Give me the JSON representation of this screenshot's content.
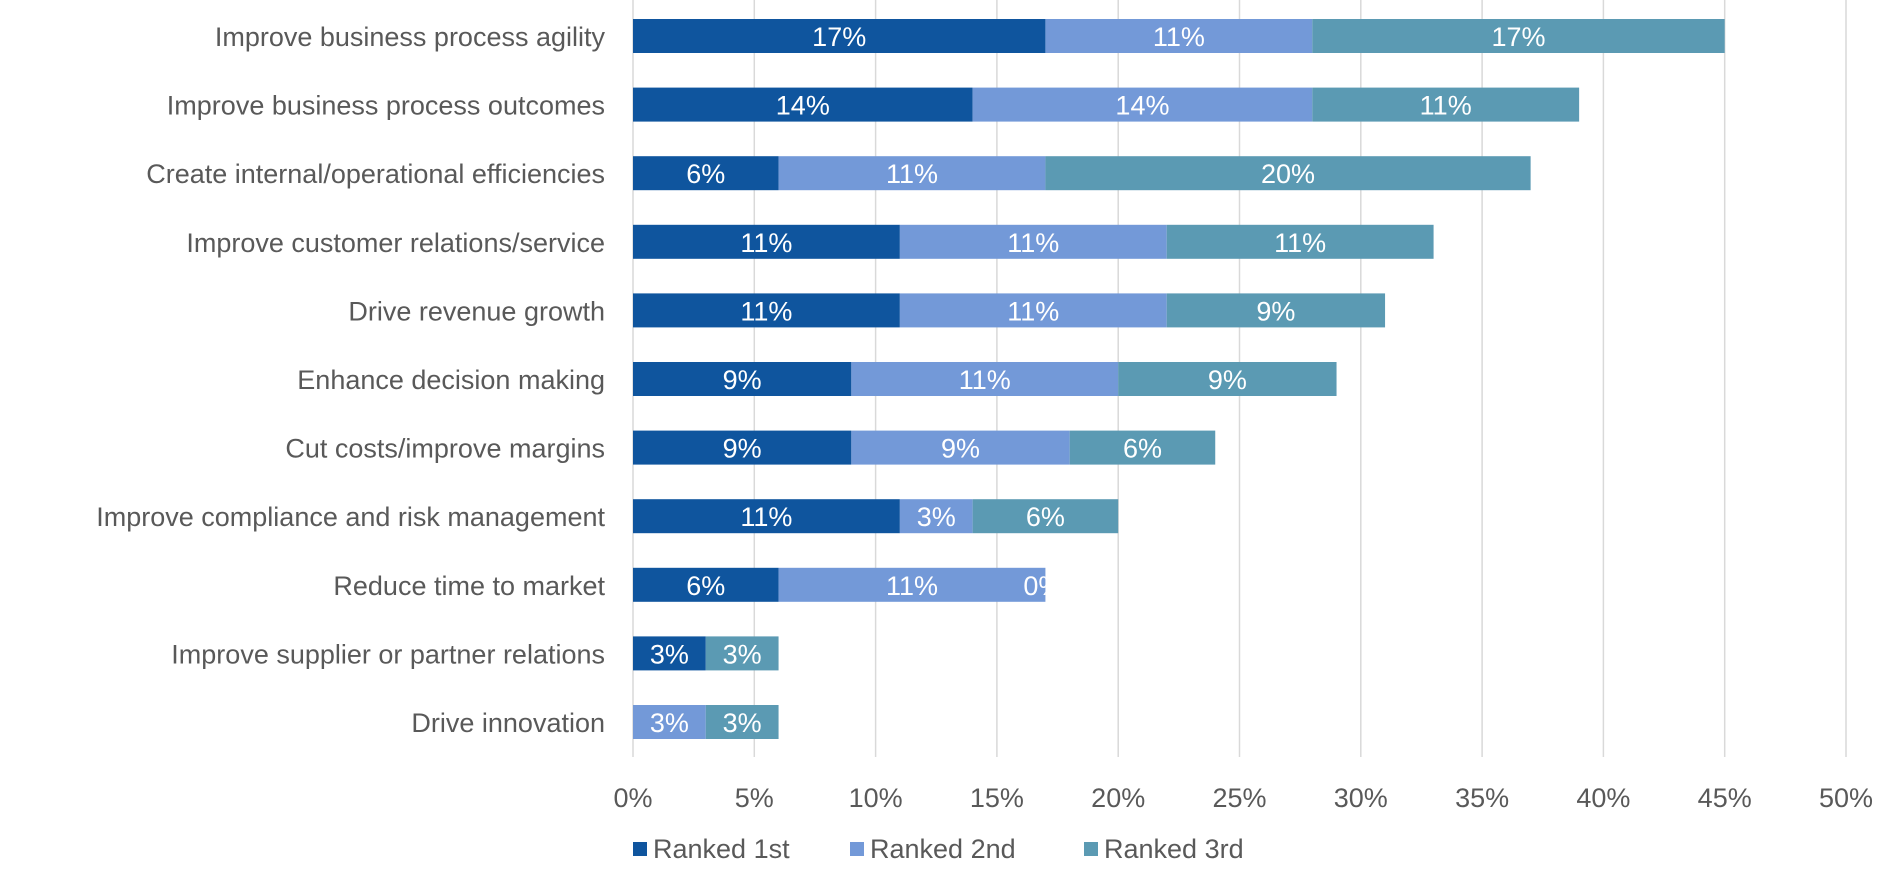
{
  "chart_data": {
    "type": "bar",
    "orientation": "horizontal",
    "stacked": true,
    "categories": [
      "Improve business process agility",
      "Improve business process outcomes",
      "Create internal/operational efficiencies",
      "Improve customer relations/service",
      "Drive revenue growth",
      "Enhance decision making",
      "Cut costs/improve margins",
      "Improve compliance and risk management",
      "Reduce time to market",
      "Improve supplier or partner relations",
      "Drive innovation"
    ],
    "series": [
      {
        "name": "Ranked 1st",
        "color": "#0F559E",
        "values": [
          17,
          14,
          6,
          11,
          11,
          9,
          9,
          11,
          6,
          3,
          0
        ],
        "labels": [
          "17%",
          "14%",
          "6%",
          "11%",
          "11%",
          "9%",
          "9%",
          "11%",
          "6%",
          "3%",
          ""
        ]
      },
      {
        "name": "Ranked 2nd",
        "color": "#7399D8",
        "values": [
          11,
          14,
          11,
          11,
          11,
          11,
          9,
          3,
          11,
          0,
          3
        ],
        "labels": [
          "11%",
          "14%",
          "11%",
          "11%",
          "11%",
          "11%",
          "9%",
          "3%",
          "11%",
          "",
          "3%"
        ]
      },
      {
        "name": "Ranked 3rd",
        "color": "#5B9AB3",
        "values": [
          17,
          11,
          20,
          11,
          9,
          9,
          6,
          6,
          0,
          3,
          3
        ],
        "labels": [
          "17%",
          "11%",
          "20%",
          "11%",
          "9%",
          "9%",
          "6%",
          "6%",
          "0%",
          "3%",
          "3%"
        ]
      }
    ],
    "xlim": [
      0,
      50
    ],
    "x_ticks": [
      0,
      5,
      10,
      15,
      20,
      25,
      30,
      35,
      40,
      45,
      50
    ],
    "x_tick_labels": [
      "0%",
      "5%",
      "10%",
      "15%",
      "20%",
      "25%",
      "30%",
      "35%",
      "40%",
      "45%",
      "50%"
    ],
    "grid": true,
    "legend_position": "bottom"
  }
}
